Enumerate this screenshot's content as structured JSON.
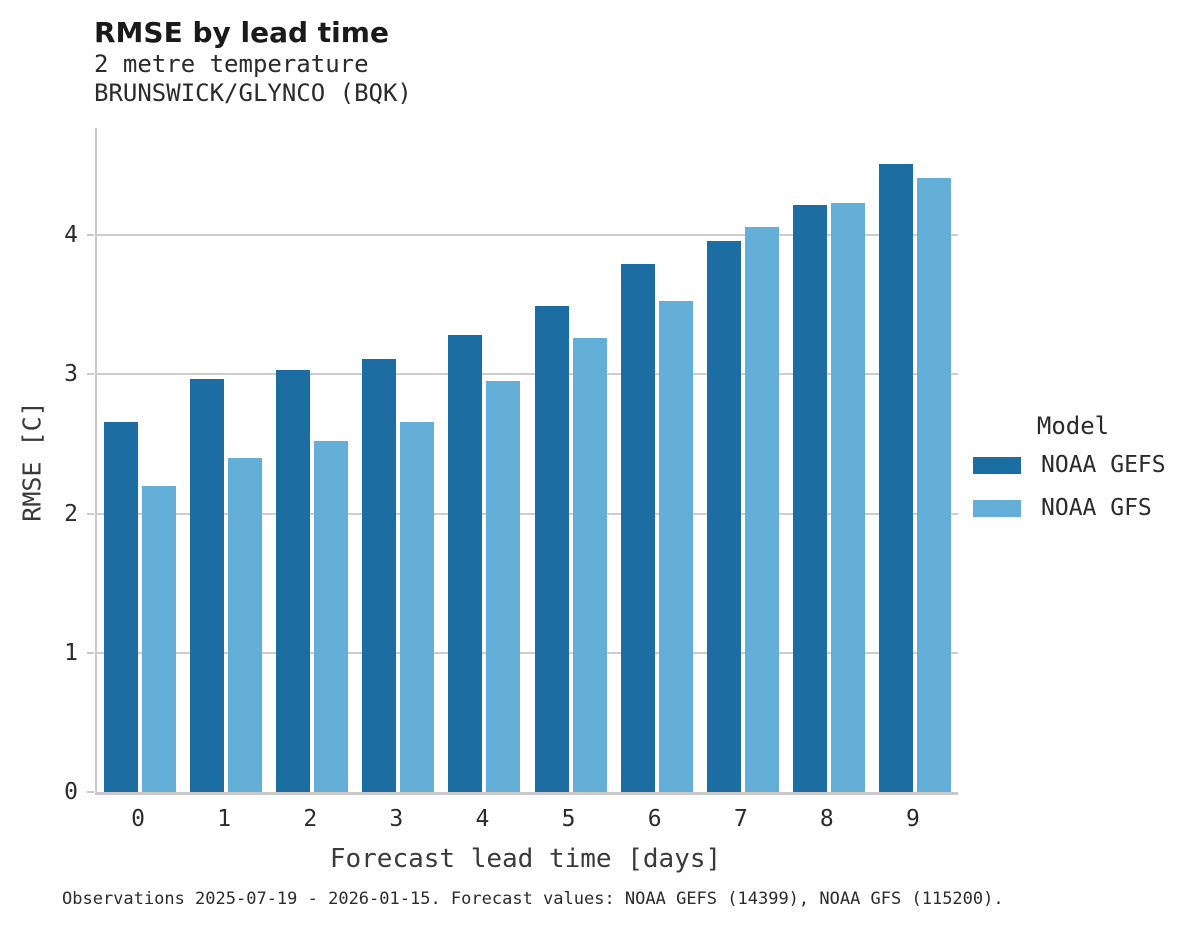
{
  "header": {
    "title": "RMSE by lead time",
    "subtitle_line1": "2 metre temperature",
    "subtitle_line2": "BRUNSWICK/GLYNCO (BQK)"
  },
  "caption": "Observations 2025-07-19 - 2026-01-15. Forecast values: NOAA GEFS (14399), NOAA GFS (115200).",
  "legend": {
    "title": "Model",
    "items": [
      {
        "label": "NOAA GEFS",
        "color": "#1c6ea2"
      },
      {
        "label": "NOAA GFS",
        "color": "#64afd8"
      }
    ]
  },
  "colors": {
    "gefs_bar": "#1c6ea2",
    "gfs_bar": "#64afd8",
    "gridline": "#cdcdcd",
    "spine": "#c9c9c9",
    "text": "#2b2b2b"
  },
  "chart_data": {
    "type": "bar",
    "title": "RMSE by lead time",
    "subtitle": [
      "2 metre temperature",
      "BRUNSWICK/GLYNCO (BQK)"
    ],
    "xlabel": "Forecast lead time [days]",
    "ylabel": "RMSE [C]",
    "categories": [
      "0",
      "1",
      "2",
      "3",
      "4",
      "5",
      "6",
      "7",
      "8",
      "9"
    ],
    "series": [
      {
        "name": "NOAA GEFS",
        "color": "#1c6ea2",
        "values": [
          2.66,
          2.97,
          3.03,
          3.11,
          3.28,
          3.49,
          3.79,
          3.96,
          4.22,
          4.51
        ]
      },
      {
        "name": "NOAA GFS",
        "color": "#64afd8",
        "values": [
          2.2,
          2.4,
          2.52,
          2.66,
          2.95,
          3.26,
          3.53,
          4.06,
          4.23,
          4.41
        ]
      }
    ],
    "ylim": [
      0,
      4.77
    ],
    "yticks": [
      0,
      1,
      2,
      3,
      4
    ],
    "grid": "horizontal-major",
    "legend_position": "right",
    "legend_title": "Model",
    "caption": "Observations 2025-07-19 - 2026-01-15. Forecast values: NOAA GEFS (14399), NOAA GFS (115200)."
  }
}
